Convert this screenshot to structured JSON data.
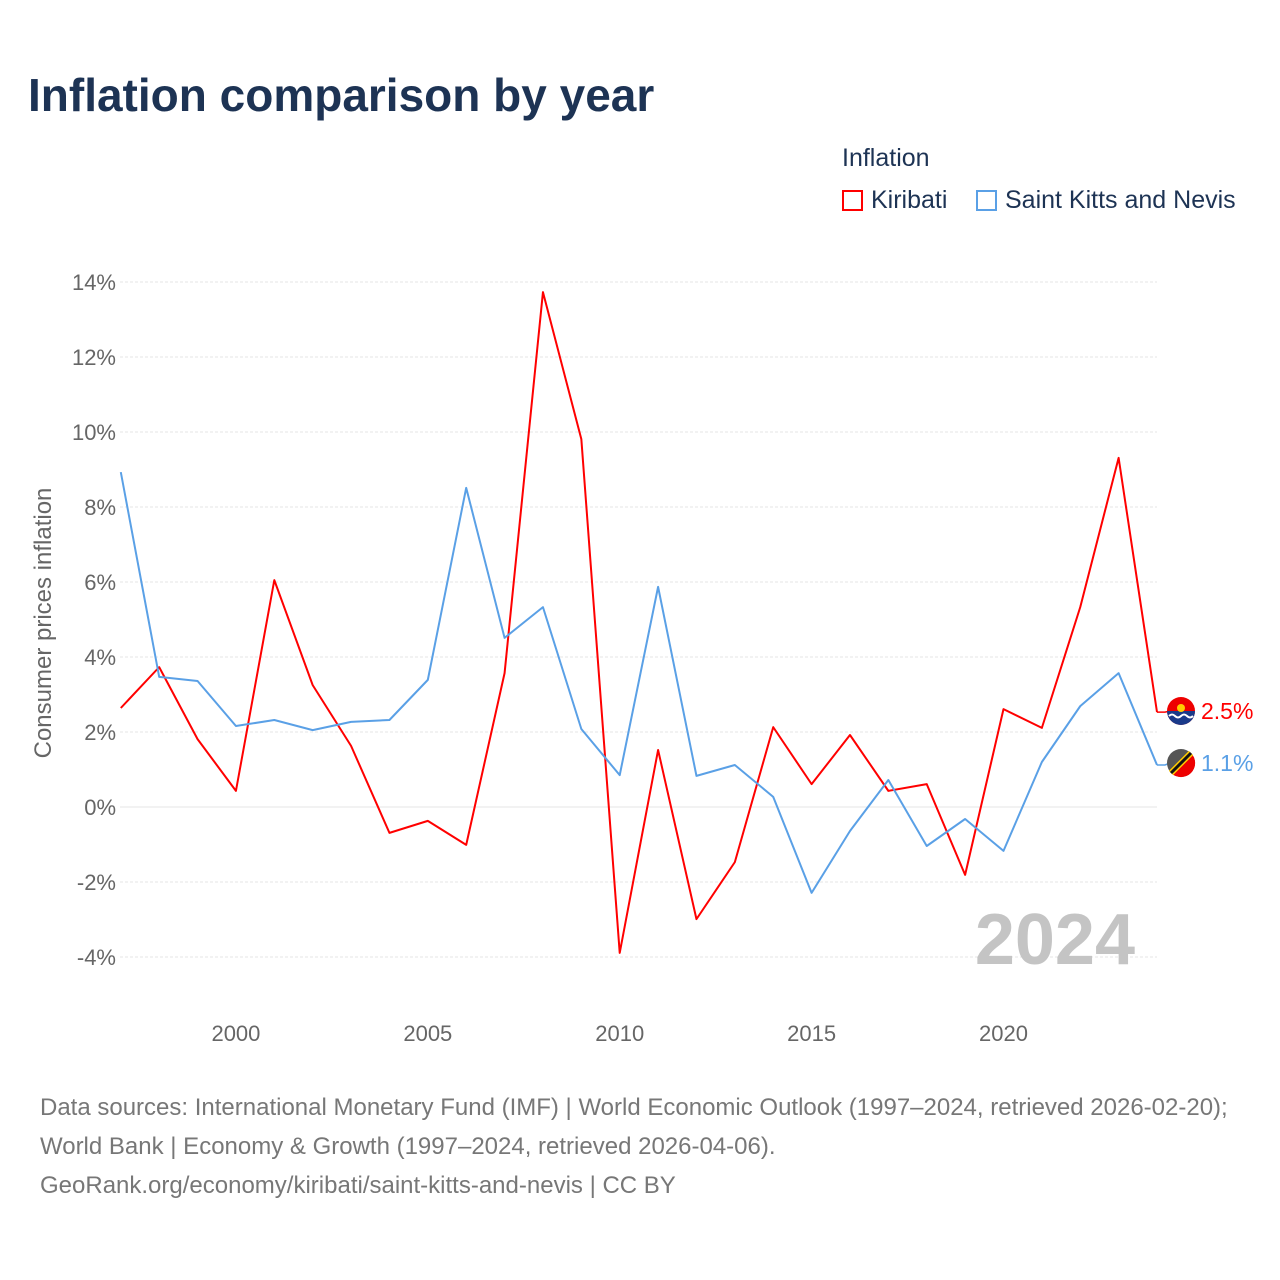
{
  "chart_data": {
    "type": "line",
    "title": "Inflation comparison by year",
    "ylabel": "Consumer prices inflation",
    "xlabel": "",
    "legend_title": "Inflation",
    "legend_position": "top-right",
    "year_watermark": "2024",
    "x": [
      1997,
      1998,
      1999,
      2000,
      2001,
      2002,
      2003,
      2004,
      2005,
      2006,
      2007,
      2008,
      2009,
      2010,
      2011,
      2012,
      2013,
      2014,
      2015,
      2016,
      2017,
      2018,
      2019,
      2020,
      2021,
      2022,
      2023,
      2024
    ],
    "xlim": [
      1997,
      2024
    ],
    "ylim": [
      -4,
      14
    ],
    "xticks": [
      2000,
      2005,
      2010,
      2015,
      2020
    ],
    "yticks": [
      -4,
      -2,
      0,
      2,
      4,
      6,
      8,
      10,
      12,
      14
    ],
    "ytick_labels": [
      "-4%",
      "-2%",
      "0%",
      "2%",
      "4%",
      "6%",
      "8%",
      "10%",
      "12%",
      "14%"
    ],
    "grid": true,
    "series": [
      {
        "name": "Kiribati",
        "color": "#ff0000",
        "end_label": "2.5%",
        "values": [
          2.64,
          3.73,
          1.81,
          0.43,
          6.05,
          3.25,
          1.63,
          -0.69,
          -0.37,
          -1.01,
          3.57,
          13.73,
          9.81,
          -3.89,
          1.52,
          -2.99,
          -1.47,
          2.13,
          0.61,
          1.92,
          0.43,
          0.61,
          -1.81,
          2.61,
          2.11,
          5.33,
          9.31,
          2.53
        ]
      },
      {
        "name": "Saint Kitts and Nevis",
        "color": "#5aa0e6",
        "end_label": "1.1%",
        "values": [
          8.93,
          3.47,
          3.36,
          2.16,
          2.32,
          2.05,
          2.27,
          2.32,
          3.39,
          8.51,
          4.51,
          5.33,
          2.08,
          0.85,
          5.87,
          0.83,
          1.12,
          0.27,
          -2.29,
          -0.64,
          0.72,
          -1.04,
          -0.32,
          -1.17,
          1.2,
          2.69,
          3.57,
          1.12
        ]
      }
    ]
  },
  "footer": {
    "sources": "Data sources: International Monetary Fund (IMF) | World Economic Outlook (1997–2024, retrieved 2026-02-20); World Bank | Economy & Growth (1997–2024, retrieved 2026-04-06).",
    "link": "GeoRank.org/economy/kiribati/saint-kitts-and-nevis | CC BY"
  }
}
